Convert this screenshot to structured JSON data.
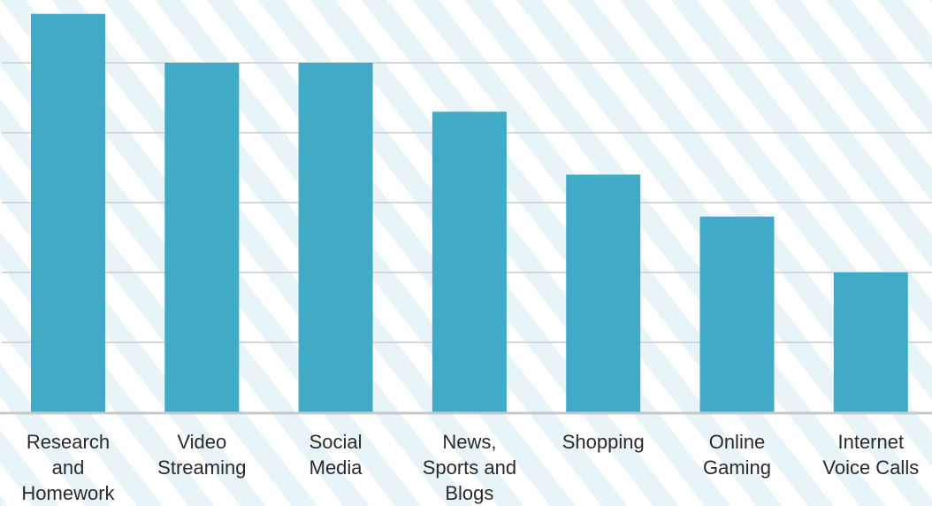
{
  "chart_data": {
    "type": "bar",
    "title": "",
    "xlabel": "",
    "ylabel": "",
    "categories": [
      "Research and Homework",
      "Video Streaming",
      "Social Media",
      "News, Sports and Blogs",
      "Shopping",
      "Online Gaming",
      "Internet Voice Calls"
    ],
    "category_label_lines": [
      [
        "Research",
        "and",
        "Homework"
      ],
      [
        "Video",
        "Streaming"
      ],
      [
        "Social",
        "Media"
      ],
      [
        "News,",
        "Sports and",
        "Blogs"
      ],
      [
        "Shopping"
      ],
      [
        "Online",
        "Gaming"
      ],
      [
        "Internet",
        "Voice Calls"
      ]
    ],
    "values": [
      57,
      50,
      50,
      43,
      34,
      28,
      20
    ],
    "ylim": [
      0,
      60
    ],
    "gridlines": [
      10,
      20,
      30,
      40,
      50
    ],
    "grid": true,
    "legend": "none",
    "y_tick_labels": false,
    "colors": {
      "bar": "#41abc7",
      "grid": "#d4d8dc",
      "axis": "#c6c9cc",
      "background": "#ffffff",
      "pattern": "#e9f4f8",
      "label": "#2a2a2a"
    }
  }
}
